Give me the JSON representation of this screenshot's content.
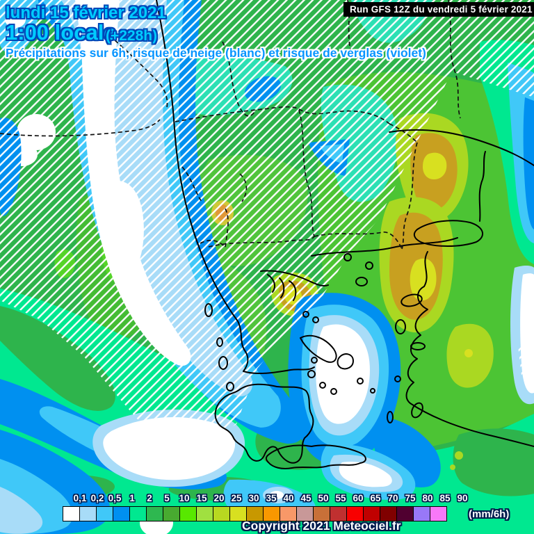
{
  "header": {
    "date_line": "lundi 15 février 2021",
    "time_line": "1:00 locale",
    "forecast_offset": "(+228h)",
    "run_info": "Run GFS 12Z du vendredi 5 février 2021",
    "subtitle": "Précipitations sur 6h, risque de neige (blanc) et risque de verglas (violet)"
  },
  "legend": {
    "ticks": [
      "0,1",
      "0,2",
      "0,5",
      "1",
      "2",
      "5",
      "10",
      "15",
      "20",
      "25",
      "30",
      "35",
      "40",
      "45",
      "50",
      "55",
      "60",
      "65",
      "70",
      "75",
      "80",
      "85",
      "90"
    ],
    "colors": [
      "#ffffff",
      "#a8dcf8",
      "#40c8f8",
      "#0090f0",
      "#00e890",
      "#2eb850",
      "#48aa30",
      "#58e800",
      "#a0e040",
      "#b8d820",
      "#d8e020",
      "#c89800",
      "#f89800",
      "#f89868",
      "#c89898",
      "#c87038",
      "#c03030",
      "#f80000",
      "#c00000",
      "#800000",
      "#500030",
      "#9878f8",
      "#f878f8"
    ],
    "unit": "(mm/6h)"
  },
  "footer": {
    "copyright": "Copyright 2021 Meteociel.fr"
  },
  "map": {
    "palette": {
      "base_green": "#2eb44c",
      "bright_green": "#55d428",
      "east_green": "#4cc434",
      "turquoise": "#2ce0b4",
      "spring_green": "#00e890",
      "blue": "#0090f0",
      "cyan": "#40c8f8",
      "light_blue": "#a8dcf8",
      "snow_white": "#ffffff",
      "yellow_green": "#aad822",
      "dark_yellow": "#c8a020",
      "yellow": "#d8e020",
      "hatch": "#ffffff",
      "coast": "#000000",
      "text_cyan": "#00ccff"
    }
  }
}
